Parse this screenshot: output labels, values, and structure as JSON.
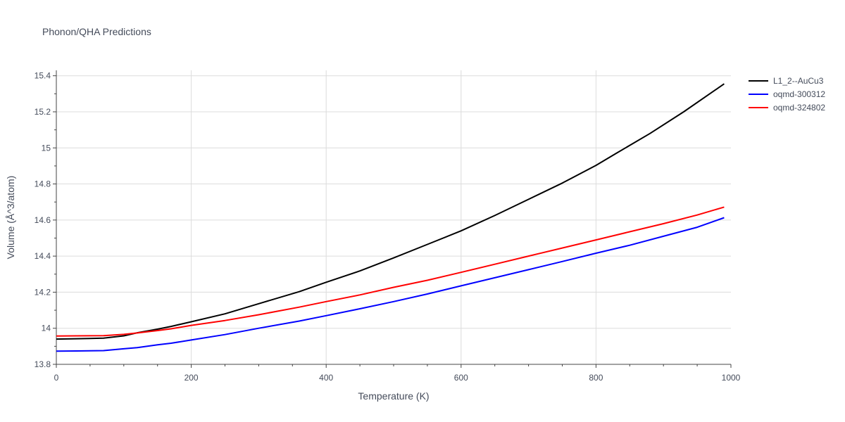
{
  "chart_data": {
    "type": "line",
    "title": "Phonon/QHA Predictions",
    "xlabel": "Temperature (K)",
    "ylabel": "Volume (Å^3/atom)",
    "xlim": [
      0,
      1000
    ],
    "ylim": [
      13.8,
      15.43
    ],
    "x_ticks": [
      0,
      200,
      400,
      600,
      800,
      1000
    ],
    "y_ticks": [
      13.8,
      14,
      14.2,
      14.4,
      14.6,
      14.8,
      15,
      15.2,
      15.4
    ],
    "x_tick_labels": [
      "0",
      "200",
      "400",
      "600",
      "800",
      "1000"
    ],
    "y_tick_labels": [
      "13.8",
      "14",
      "14.2",
      "14.4",
      "14.6",
      "14.8",
      "15",
      "15.2",
      "15.4"
    ],
    "grid": true,
    "legend_position": "top-right",
    "series": [
      {
        "name": "L1_2--AuCu3",
        "color": "#000000",
        "x": [
          0,
          30,
          70,
          100,
          120,
          150,
          170,
          200,
          250,
          300,
          360,
          400,
          450,
          500,
          550,
          600,
          650,
          700,
          750,
          800,
          830,
          880,
          930,
          990
        ],
        "y": [
          13.94,
          13.942,
          13.945,
          13.958,
          13.975,
          13.995,
          14.01,
          14.036,
          14.08,
          14.136,
          14.203,
          14.255,
          14.318,
          14.39,
          14.465,
          14.54,
          14.625,
          14.715,
          14.805,
          14.903,
          14.97,
          15.08,
          15.2,
          15.355
        ]
      },
      {
        "name": "oqmd-300312",
        "color": "#0000ff",
        "x": [
          0,
          30,
          70,
          100,
          120,
          150,
          170,
          200,
          250,
          300,
          360,
          400,
          450,
          500,
          550,
          600,
          650,
          700,
          750,
          800,
          850,
          900,
          950,
          990
        ],
        "y": [
          13.873,
          13.874,
          13.876,
          13.886,
          13.893,
          13.908,
          13.917,
          13.935,
          13.965,
          14.0,
          14.04,
          14.07,
          14.108,
          14.148,
          14.19,
          14.235,
          14.28,
          14.325,
          14.37,
          14.416,
          14.46,
          14.51,
          14.56,
          14.613
        ]
      },
      {
        "name": "oqmd-324802",
        "color": "#ff0000",
        "x": [
          0,
          30,
          70,
          100,
          120,
          150,
          170,
          200,
          250,
          300,
          360,
          400,
          450,
          500,
          550,
          600,
          650,
          700,
          750,
          800,
          850,
          900,
          950,
          990
        ],
        "y": [
          13.957,
          13.958,
          13.959,
          13.966,
          13.974,
          13.987,
          13.997,
          14.016,
          14.043,
          14.075,
          14.117,
          14.148,
          14.185,
          14.227,
          14.266,
          14.31,
          14.355,
          14.4,
          14.445,
          14.49,
          14.535,
          14.58,
          14.628,
          14.672
        ]
      }
    ]
  }
}
